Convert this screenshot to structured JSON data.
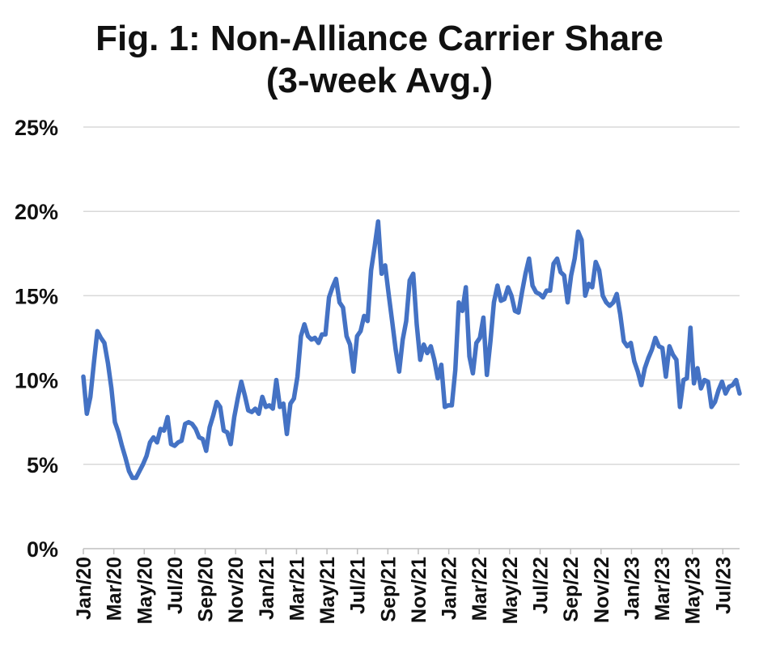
{
  "chart_data": {
    "type": "line",
    "title": "Fig. 1: Non-Alliance Carrier Share",
    "subtitle": "(3-week Avg.)",
    "xlabel": "",
    "ylabel": "",
    "ylim": [
      0,
      25
    ],
    "y_ticks": [
      "0%",
      "5%",
      "10%",
      "15%",
      "20%",
      "25%"
    ],
    "x_ticks": [
      "Jan/20",
      "Mar/20",
      "May/20",
      "Jul/20",
      "Sep/20",
      "Nov/20",
      "Jan/21",
      "Mar/21",
      "May/21",
      "Jul/21",
      "Sep/21",
      "Nov/21",
      "Jan/22",
      "Mar/22",
      "May/22",
      "Jul/22",
      "Sep/22",
      "Nov/22",
      "Jan/23",
      "Mar/23",
      "May/23",
      "Jul/23"
    ],
    "grid": true,
    "legend": "none",
    "color": "#4472C4",
    "series": [
      {
        "values": [
          10.2,
          8.0,
          9.0,
          11.0,
          12.9,
          12.5,
          12.2,
          11.0,
          9.5,
          7.5,
          6.9,
          6.1,
          5.4,
          4.6,
          4.2,
          4.2,
          4.6,
          5.0,
          5.5,
          6.3,
          6.6,
          6.3,
          7.1,
          7.0,
          7.8,
          6.2,
          6.1,
          6.3,
          6.4,
          7.4,
          7.5,
          7.4,
          7.1,
          6.6,
          6.5,
          5.8,
          7.2,
          7.9,
          8.7,
          8.4,
          7.0,
          6.9,
          6.2,
          7.8,
          8.9,
          9.9,
          9.1,
          8.2,
          8.1,
          8.3,
          8.0,
          9.0,
          8.4,
          8.5,
          8.3,
          10.0,
          8.4,
          8.6,
          6.8,
          8.6,
          8.9,
          10.2,
          12.6,
          13.3,
          12.6,
          12.4,
          12.5,
          12.2,
          12.7,
          12.7,
          14.9,
          15.5,
          16.0,
          14.6,
          14.3,
          12.6,
          12.1,
          10.5,
          12.6,
          12.9,
          13.8,
          13.5,
          16.5,
          17.9,
          19.4,
          16.3,
          16.8,
          15.1,
          13.5,
          11.8,
          10.5,
          12.4,
          13.5,
          15.9,
          16.3,
          13.3,
          11.2,
          12.1,
          11.6,
          12.0,
          11.2,
          10.1,
          10.9,
          8.4,
          8.5,
          8.5,
          10.6,
          14.6,
          14.1,
          15.5,
          11.4,
          10.4,
          12.2,
          12.5,
          13.7,
          10.3,
          12.3,
          14.6,
          15.6,
          14.7,
          14.8,
          15.5,
          15.0,
          14.1,
          14.0,
          15.2,
          16.3,
          17.2,
          15.6,
          15.2,
          15.1,
          14.9,
          15.3,
          15.3,
          16.9,
          17.2,
          16.4,
          16.2,
          14.6,
          16.2,
          17.2,
          18.8,
          18.3,
          15.0,
          15.7,
          15.5,
          17.0,
          16.5,
          15.0,
          14.6,
          14.4,
          14.6,
          15.1,
          13.9,
          12.3,
          12.0,
          12.2,
          11.1,
          10.5,
          9.7,
          10.7,
          11.3,
          11.8,
          12.5,
          12.0,
          11.9,
          10.2,
          12.0,
          11.5,
          11.2,
          8.4,
          10.0,
          10.1,
          13.1,
          9.8,
          10.7,
          9.5,
          10.0,
          9.9,
          8.4,
          8.7,
          9.4,
          9.9,
          9.2,
          9.6,
          9.7,
          10.0,
          9.2
        ]
      }
    ]
  }
}
